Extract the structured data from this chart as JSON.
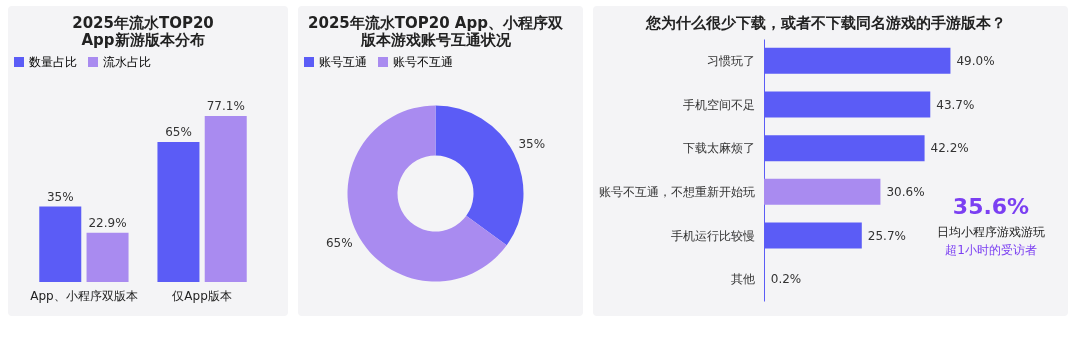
{
  "chart_data": [
    {
      "type": "bar",
      "title": "2025年流水TOP20\nApp新游版本分布",
      "categories": [
        "App、小程序双版本",
        "仅App版本"
      ],
      "series": [
        {
          "name": "数量占比",
          "color": "#5b5cf6",
          "values": [
            35,
            65
          ],
          "value_labels": [
            "35%",
            "65%"
          ]
        },
        {
          "name": "流水占比",
          "color": "#a98bf0",
          "values": [
            22.9,
            77.1
          ],
          "value_labels": [
            "22.9%",
            "77.1%"
          ]
        }
      ],
      "legend": "top",
      "tick_labels": "x"
    },
    {
      "type": "donut",
      "title": "2025年流水TOP20 App、小程序双版本游戏账号互通状况",
      "categories": [
        "账号互通",
        "账号不互通"
      ],
      "values": [
        35,
        65
      ],
      "colors": [
        "#5b5cf6",
        "#a98bf0"
      ],
      "value_labels": [
        "35%",
        "65%"
      ],
      "legend": "top"
    },
    {
      "type": "bar",
      "orientation": "horizontal",
      "title": "您为什么很少下载，或者不下载同名游戏的手游版本？",
      "categories": [
        "习惯玩了",
        "手机空间不足",
        "下载太麻烦了",
        "账号不互通，不想重新开始玩",
        "手机运行比较慢",
        "其他"
      ],
      "values": [
        49.0,
        43.7,
        42.2,
        30.6,
        25.7,
        0.2
      ],
      "colors": [
        "#5b5cf6",
        "#5b5cf6",
        "#5b5cf6",
        "#a98bf0",
        "#5b5cf6",
        "#5b5cf6"
      ],
      "value_labels": [
        "49.0%",
        "43.7%",
        "42.2%",
        "30.6%",
        "25.7%",
        "0.2%"
      ],
      "tick_labels": "y",
      "annotations": [
        "35.6%",
        "日均小程序游戏游玩",
        "超1小时的受访者"
      ]
    }
  ]
}
